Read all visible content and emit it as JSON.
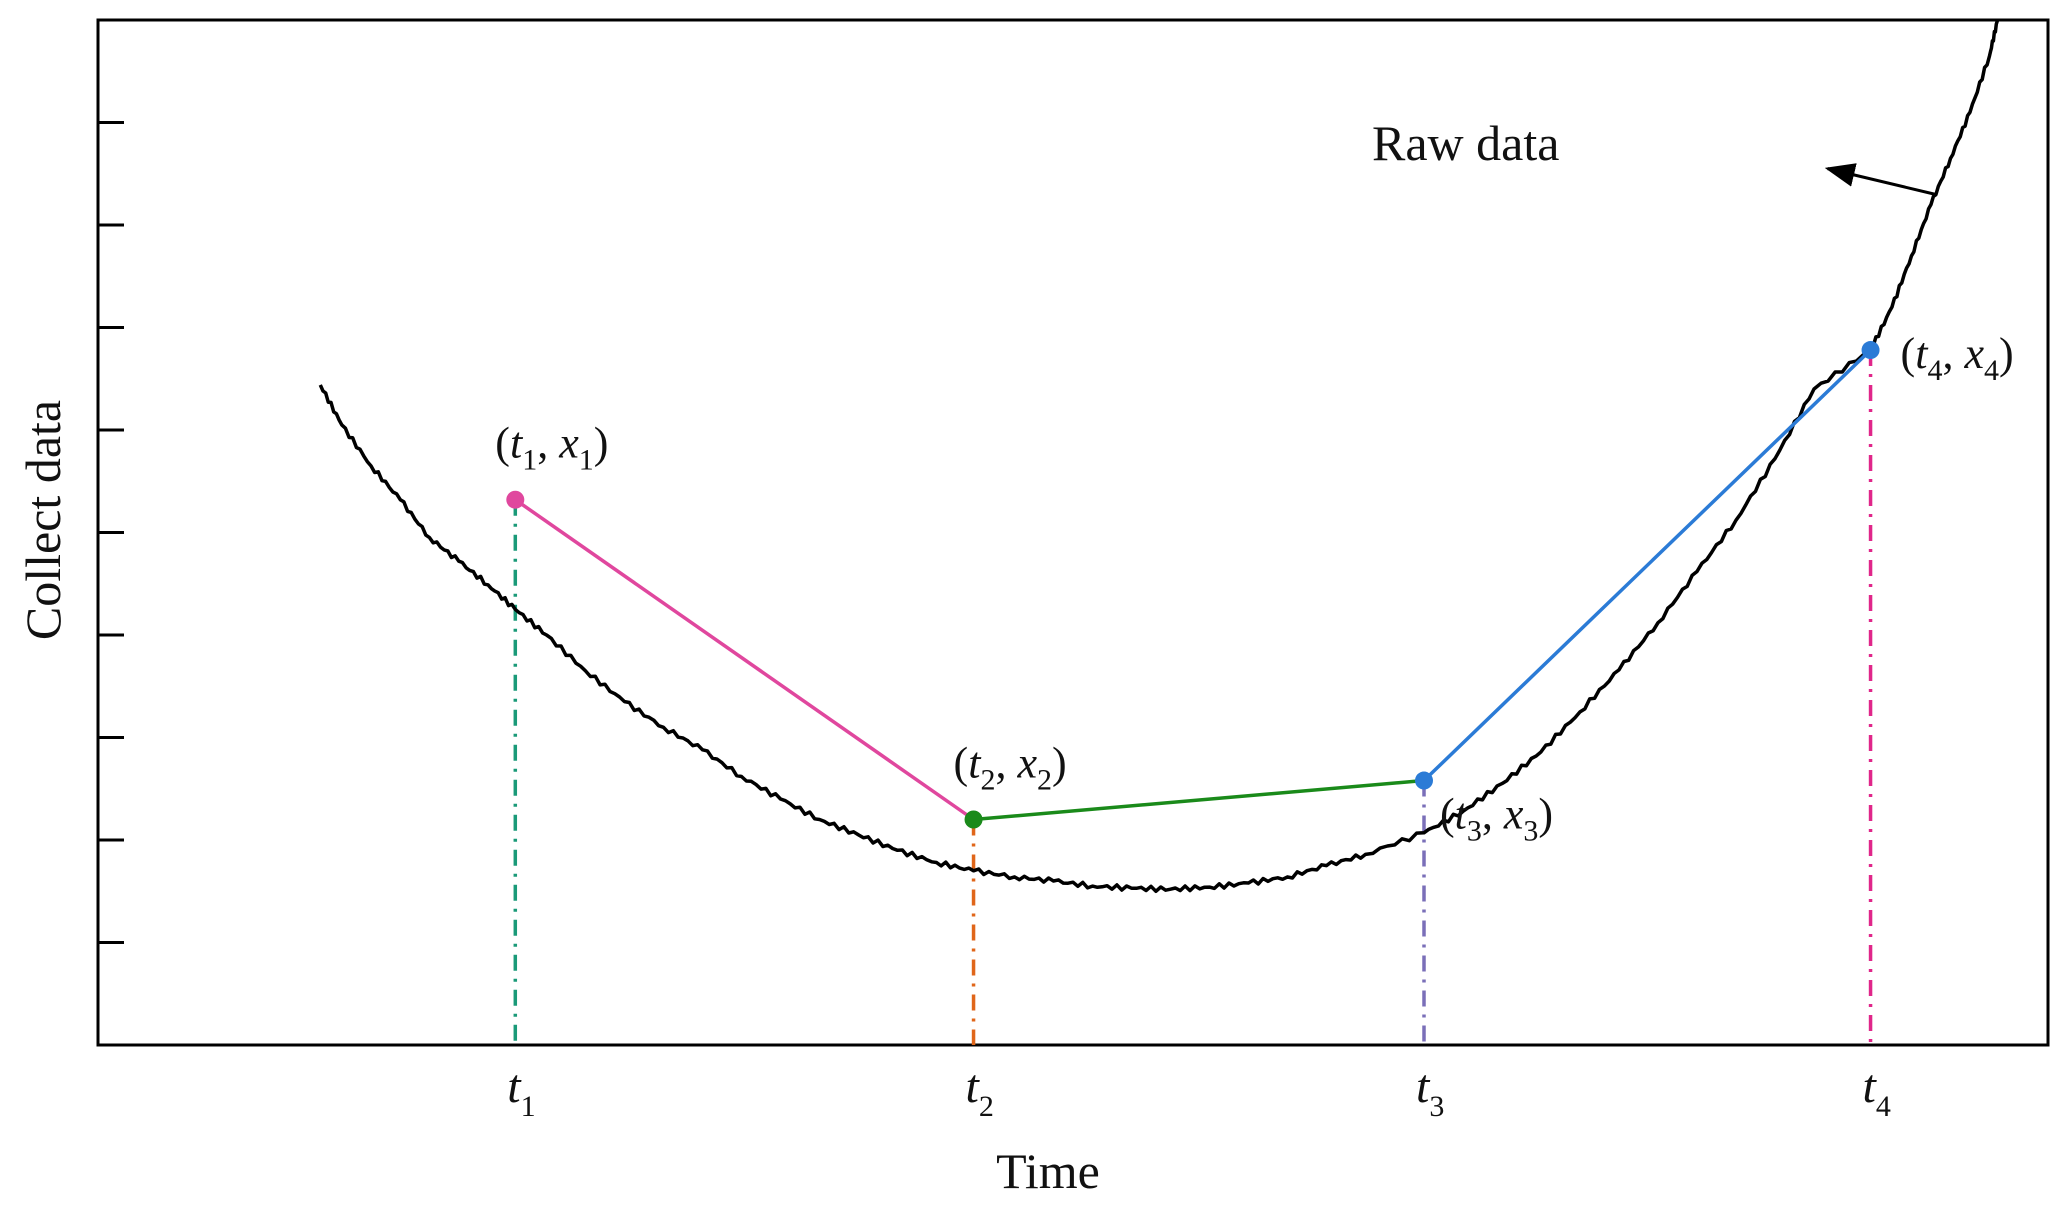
{
  "chart_data": {
    "type": "line",
    "title": "",
    "xlabel": "Time",
    "ylabel": "Collect data",
    "legend": "none",
    "grid": false,
    "xlim": [
      0,
      10
    ],
    "ylim": [
      0,
      10
    ],
    "y_ticks": [
      1,
      2,
      3,
      4,
      5,
      6,
      7,
      8,
      9
    ],
    "x_ticks": [
      {
        "x": 2.14,
        "label": "t",
        "sub": "1"
      },
      {
        "x": 4.49,
        "label": "t",
        "sub": "2"
      },
      {
        "x": 6.8,
        "label": "t",
        "sub": "3"
      },
      {
        "x": 9.09,
        "label": "t",
        "sub": "4"
      }
    ],
    "raw_series": {
      "name": "Raw data",
      "color": "#000000",
      "x": [
        1.14,
        1.25,
        1.4,
        1.55,
        1.7,
        1.85,
        2.0,
        2.14,
        2.3,
        2.5,
        2.7,
        2.9,
        3.1,
        3.3,
        3.5,
        3.7,
        3.9,
        4.1,
        4.3,
        4.49,
        4.7,
        4.9,
        5.1,
        5.3,
        5.5,
        5.7,
        5.9,
        6.1,
        6.3,
        6.5,
        6.8,
        7.0,
        7.2,
        7.4,
        7.6,
        7.8,
        8.0,
        8.2,
        8.4,
        8.6,
        8.8,
        9.09,
        9.2,
        9.3,
        9.4,
        9.5,
        9.6,
        9.7,
        9.74
      ],
      "y": [
        6.44,
        6.05,
        5.65,
        5.32,
        4.95,
        4.72,
        4.49,
        4.25,
        4.0,
        3.65,
        3.35,
        3.1,
        2.88,
        2.62,
        2.4,
        2.2,
        2.05,
        1.9,
        1.78,
        1.7,
        1.64,
        1.6,
        1.55,
        1.53,
        1.52,
        1.54,
        1.58,
        1.64,
        1.75,
        1.86,
        2.07,
        2.28,
        2.55,
        2.86,
        3.25,
        3.66,
        4.12,
        4.62,
        5.12,
        5.72,
        6.4,
        6.78,
        7.2,
        7.7,
        8.2,
        8.65,
        9.1,
        9.65,
        9.99
      ]
    },
    "segments": [
      {
        "from": [
          2.14,
          5.32
        ],
        "to": [
          4.49,
          2.2
        ],
        "color": "#e0479e"
      },
      {
        "from": [
          4.49,
          2.2
        ],
        "to": [
          6.8,
          2.58
        ],
        "color": "#1a8a1a"
      },
      {
        "from": [
          6.8,
          2.58
        ],
        "to": [
          9.09,
          6.78
        ],
        "color": "#2b7bd6"
      }
    ],
    "points": [
      {
        "x": 2.14,
        "y": 5.32,
        "color": "#e0479e",
        "label_t": "t",
        "label_x": "x",
        "sub": "1",
        "drop_color": "#1a9a78",
        "label_pos": "above"
      },
      {
        "x": 4.49,
        "y": 2.2,
        "color": "#1a8a1a",
        "label_t": "t",
        "label_x": "x",
        "sub": "2",
        "drop_color": "#e0661a",
        "label_pos": "above"
      },
      {
        "x": 6.8,
        "y": 2.58,
        "color": "#2b7bd6",
        "label_t": "t",
        "label_x": "x",
        "sub": "3",
        "drop_color": "#7a6fb8",
        "label_pos": "below-right"
      },
      {
        "x": 9.09,
        "y": 6.78,
        "color": "#2b7bd6",
        "label_t": "t",
        "label_x": "x",
        "sub": "4",
        "drop_color": "#e0268a",
        "label_pos": "right"
      }
    ],
    "annotation": {
      "text": "Raw data",
      "arrow_from": [
        9.42,
        8.3
      ],
      "arrow_to": [
        8.87,
        8.55
      ]
    }
  }
}
